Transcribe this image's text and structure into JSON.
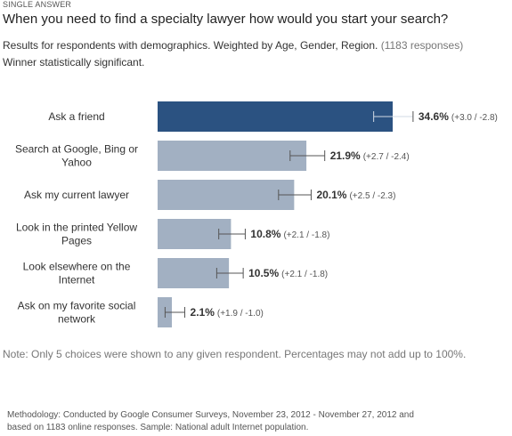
{
  "header": {
    "type_label": "SINGLE ANSWER",
    "question": "When you need to find a specialty lawyer how would you start your search?",
    "subtitle_main": "Results for respondents with demographics. Weighted by Age, Gender, Region.",
    "subtitle_count": "(1183 responses)",
    "significance": "Winner statistically significant."
  },
  "chart_data": {
    "type": "bar",
    "orientation": "horizontal",
    "categories": [
      [
        "Ask a friend"
      ],
      [
        "Search at Google, Bing or",
        "Yahoo"
      ],
      [
        "Ask my current lawyer"
      ],
      [
        "Look in the printed Yellow",
        "Pages"
      ],
      [
        "Look elsewhere on the",
        "Internet"
      ],
      [
        "Ask on my favorite social",
        "network"
      ]
    ],
    "values": [
      34.6,
      21.9,
      20.1,
      10.8,
      10.5,
      2.1
    ],
    "value_labels": [
      "34.6%",
      "21.9%",
      "20.1%",
      "10.8%",
      "10.5%",
      "2.1%"
    ],
    "error_labels": [
      "(+3.0 / -2.8)",
      "(+2.7 / -2.4)",
      "(+2.5 / -2.3)",
      "(+2.1 / -1.8)",
      "(+2.1 / -1.8)",
      "(+1.9 / -1.0)"
    ],
    "error_plus": [
      3.0,
      2.7,
      2.5,
      2.1,
      2.1,
      1.9
    ],
    "error_minus": [
      2.8,
      2.4,
      2.3,
      1.8,
      1.8,
      1.0
    ],
    "highlight_index": 0,
    "colors": {
      "winner": "#2b5281",
      "other": "#a2b0c2",
      "error_bar": "#555555"
    },
    "grid": false
  },
  "footer": {
    "note": "Note: Only 5 choices were shown to any given respondent. Percentages may not add up to 100%.",
    "methodology_line1": "Methodology: Conducted by Google Consumer Surveys, November 23, 2012 - November 27, 2012 and",
    "methodology_line2": "based on 1183 online responses. Sample: National adult Internet population."
  }
}
